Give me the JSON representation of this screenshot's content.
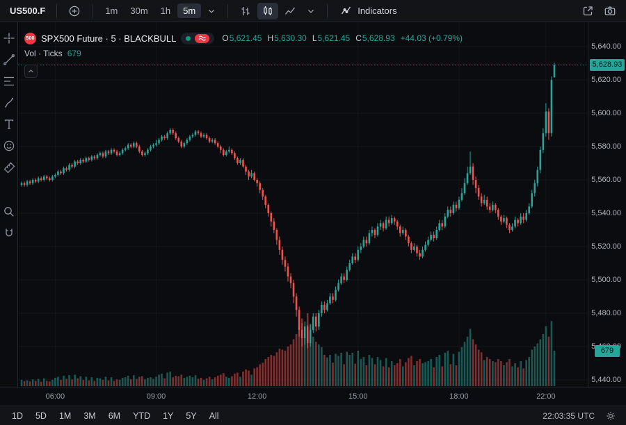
{
  "toolbar": {
    "symbol": "US500.F",
    "timeframes": [
      "1m",
      "30m",
      "1h",
      "5m"
    ],
    "active_timeframe": "5m",
    "indicators_label": "Indicators"
  },
  "legend": {
    "logo_text": "500",
    "title": "SPX500 Future · 5 · BLACKBULL",
    "ohlc": {
      "o_label": "O",
      "o": "5,621.45",
      "h_label": "H",
      "h": "5,630.30",
      "l_label": "L",
      "l": "5,621.45",
      "c_label": "C",
      "c": "5,628.93",
      "change": "+44.03 (+0.79%)"
    },
    "volume_row": {
      "label": "Vol · Ticks",
      "value": "679"
    }
  },
  "sidebar_tools": [
    {
      "name": "crosshair"
    },
    {
      "name": "trendline"
    },
    {
      "name": "fibonacci"
    },
    {
      "name": "brush"
    },
    {
      "name": "text"
    },
    {
      "name": "emoji"
    },
    {
      "name": "ruler"
    },
    {
      "name": "zoom",
      "gap_before": true
    },
    {
      "name": "magnet"
    }
  ],
  "price_scale": {
    "min": 5440,
    "max": 5640,
    "step": 20,
    "labels": [
      {
        "text": "5,640.00",
        "value": 5640
      },
      {
        "text": "5,620.00",
        "value": 5620
      },
      {
        "text": "5,600.00",
        "value": 5600
      },
      {
        "text": "5,580.00",
        "value": 5580
      },
      {
        "text": "5,560.00",
        "value": 5560
      },
      {
        "text": "5,540.00",
        "value": 5540
      },
      {
        "text": "5,520.00",
        "value": 5520
      },
      {
        "text": "5,500.00",
        "value": 5500
      },
      {
        "text": "5,480.00",
        "value": 5480
      },
      {
        "text": "5,460.00",
        "value": 5460
      },
      {
        "text": "5,440.00",
        "value": 5440
      }
    ],
    "last_price_label": "5,628.93",
    "volume_label": "679"
  },
  "bottom_bar": {
    "ranges": [
      "1D",
      "5D",
      "1M",
      "3M",
      "6M",
      "YTD",
      "1Y",
      "5Y",
      "All"
    ],
    "clock": "22:03:35 UTC"
  },
  "colors": {
    "up": "#26a69a",
    "down": "#ef5350",
    "brand_red": "#f23645",
    "market_open_green": "#089981",
    "badge_bg": "#26a69a"
  },
  "chart_data": {
    "type": "candlestick",
    "symbol": "SPX500 Future",
    "exchange": "BLACKBULL",
    "interval_minutes": 5,
    "price_range": [
      5440,
      5640
    ],
    "last": {
      "open": 5621.45,
      "high": 5630.3,
      "low": 5621.45,
      "close": 5628.93,
      "change": 44.03,
      "change_pct": 0.79,
      "tick_volume": 679
    },
    "time_labels": [
      {
        "text": "06:00",
        "index": 12
      },
      {
        "text": "09:00",
        "index": 48
      },
      {
        "text": "12:00",
        "index": 84
      },
      {
        "text": "15:00",
        "index": 120
      },
      {
        "text": "18:00",
        "index": 156
      },
      {
        "text": "22:00",
        "index": 187
      }
    ],
    "candle_fields": [
      "open",
      "high",
      "low",
      "close",
      "tick_volume"
    ],
    "candles": [
      [
        5557,
        5559,
        5556,
        5558,
        120
      ],
      [
        5558,
        5559,
        5556,
        5557,
        95
      ],
      [
        5557,
        5560,
        5556,
        5559,
        110
      ],
      [
        5559,
        5560,
        5557,
        5558,
        90
      ],
      [
        5558,
        5561,
        5557,
        5560,
        130
      ],
      [
        5560,
        5561,
        5558,
        5559,
        100
      ],
      [
        5559,
        5562,
        5558,
        5561,
        140
      ],
      [
        5561,
        5562,
        5559,
        5560,
        85
      ],
      [
        5560,
        5563,
        5559,
        5562,
        150
      ],
      [
        5562,
        5563,
        5560,
        5561,
        100
      ],
      [
        5561,
        5562,
        5559,
        5560,
        90
      ],
      [
        5560,
        5563,
        5559,
        5562,
        120
      ],
      [
        5562,
        5564,
        5561,
        5563,
        160
      ],
      [
        5563,
        5566,
        5562,
        5565,
        180
      ],
      [
        5565,
        5566,
        5563,
        5564,
        120
      ],
      [
        5564,
        5568,
        5563,
        5567,
        200
      ],
      [
        5567,
        5568,
        5565,
        5566,
        140
      ],
      [
        5566,
        5570,
        5565,
        5569,
        210
      ],
      [
        5569,
        5570,
        5567,
        5568,
        130
      ],
      [
        5568,
        5572,
        5567,
        5571,
        220
      ],
      [
        5571,
        5572,
        5569,
        5570,
        150
      ],
      [
        5570,
        5573,
        5569,
        5572,
        190
      ],
      [
        5572,
        5573,
        5570,
        5571,
        120
      ],
      [
        5571,
        5574,
        5570,
        5573,
        180
      ],
      [
        5573,
        5574,
        5571,
        5572,
        110
      ],
      [
        5572,
        5575,
        5571,
        5574,
        170
      ],
      [
        5574,
        5575,
        5572,
        5573,
        100
      ],
      [
        5573,
        5576,
        5572,
        5575,
        160
      ],
      [
        5575,
        5577,
        5574,
        5576,
        150
      ],
      [
        5576,
        5577,
        5573,
        5574,
        120
      ],
      [
        5574,
        5578,
        5573,
        5577,
        180
      ],
      [
        5577,
        5578,
        5575,
        5576,
        110
      ],
      [
        5576,
        5579,
        5575,
        5578,
        170
      ],
      [
        5578,
        5579,
        5576,
        5577,
        100
      ],
      [
        5577,
        5578,
        5574,
        5575,
        130
      ],
      [
        5575,
        5577,
        5574,
        5576,
        120
      ],
      [
        5576,
        5579,
        5575,
        5578,
        160
      ],
      [
        5578,
        5580,
        5577,
        5579,
        170
      ],
      [
        5579,
        5582,
        5578,
        5581,
        200
      ],
      [
        5581,
        5582,
        5579,
        5580,
        130
      ],
      [
        5580,
        5583,
        5579,
        5582,
        210
      ],
      [
        5582,
        5583,
        5579,
        5580,
        140
      ],
      [
        5580,
        5581,
        5576,
        5577,
        180
      ],
      [
        5577,
        5578,
        5574,
        5575,
        190
      ],
      [
        5575,
        5577,
        5574,
        5576,
        130
      ],
      [
        5576,
        5579,
        5575,
        5578,
        160
      ],
      [
        5578,
        5581,
        5577,
        5580,
        170
      ],
      [
        5580,
        5582,
        5579,
        5581,
        140
      ],
      [
        5581,
        5584,
        5580,
        5582,
        180
      ],
      [
        5582,
        5585,
        5581,
        5584,
        220
      ],
      [
        5584,
        5587,
        5583,
        5586,
        240
      ],
      [
        5586,
        5587,
        5584,
        5585,
        150
      ],
      [
        5585,
        5589,
        5584,
        5588,
        260
      ],
      [
        5588,
        5591,
        5587,
        5590,
        280
      ],
      [
        5590,
        5591,
        5587,
        5588,
        170
      ],
      [
        5588,
        5589,
        5584,
        5585,
        200
      ],
      [
        5585,
        5586,
        5582,
        5583,
        190
      ],
      [
        5583,
        5584,
        5579,
        5580,
        220
      ],
      [
        5580,
        5583,
        5579,
        5582,
        160
      ],
      [
        5582,
        5585,
        5581,
        5584,
        180
      ],
      [
        5584,
        5587,
        5583,
        5586,
        200
      ],
      [
        5586,
        5588,
        5585,
        5587,
        170
      ],
      [
        5587,
        5590,
        5586,
        5589,
        210
      ],
      [
        5589,
        5590,
        5587,
        5588,
        140
      ],
      [
        5588,
        5589,
        5585,
        5586,
        160
      ],
      [
        5586,
        5588,
        5585,
        5587,
        120
      ],
      [
        5587,
        5588,
        5584,
        5585,
        150
      ],
      [
        5585,
        5586,
        5582,
        5583,
        180
      ],
      [
        5583,
        5585,
        5582,
        5584,
        130
      ],
      [
        5584,
        5585,
        5581,
        5582,
        170
      ],
      [
        5582,
        5583,
        5579,
        5580,
        200
      ],
      [
        5580,
        5581,
        5576,
        5578,
        220
      ],
      [
        5578,
        5579,
        5574,
        5575,
        250
      ],
      [
        5575,
        5578,
        5574,
        5577,
        180
      ],
      [
        5577,
        5580,
        5576,
        5578,
        160
      ],
      [
        5578,
        5579,
        5575,
        5576,
        190
      ],
      [
        5576,
        5577,
        5572,
        5573,
        240
      ],
      [
        5573,
        5574,
        5569,
        5570,
        260
      ],
      [
        5570,
        5573,
        5569,
        5572,
        180
      ],
      [
        5572,
        5573,
        5567,
        5568,
        280
      ],
      [
        5568,
        5569,
        5563,
        5565,
        320
      ],
      [
        5565,
        5566,
        5560,
        5562,
        300
      ],
      [
        5562,
        5566,
        5561,
        5564,
        220
      ],
      [
        5564,
        5565,
        5559,
        5560,
        340
      ],
      [
        5560,
        5561,
        5556,
        5558,
        360
      ],
      [
        5558,
        5559,
        5552,
        5554,
        420
      ],
      [
        5554,
        5555,
        5548,
        5550,
        450
      ],
      [
        5550,
        5551,
        5543,
        5545,
        520
      ],
      [
        5545,
        5546,
        5538,
        5540,
        560
      ],
      [
        5540,
        5541,
        5532,
        5535,
        600
      ],
      [
        5535,
        5537,
        5528,
        5530,
        580
      ],
      [
        5530,
        5531,
        5521,
        5524,
        650
      ],
      [
        5524,
        5526,
        5515,
        5518,
        720
      ],
      [
        5518,
        5520,
        5509,
        5512,
        700
      ],
      [
        5512,
        5514,
        5505,
        5508,
        680
      ],
      [
        5508,
        5510,
        5499,
        5502,
        760
      ],
      [
        5502,
        5504,
        5495,
        5498,
        800
      ],
      [
        5498,
        5500,
        5486,
        5490,
        900
      ],
      [
        5490,
        5492,
        5478,
        5482,
        1000
      ],
      [
        5482,
        5484,
        5466,
        5470,
        1150
      ],
      [
        5470,
        5474,
        5460,
        5465,
        1300
      ],
      [
        5465,
        5475,
        5461,
        5472,
        1100
      ],
      [
        5472,
        5473,
        5459,
        5462,
        1400
      ],
      [
        5462,
        5473,
        5460,
        5470,
        1200
      ],
      [
        5470,
        5480,
        5468,
        5478,
        950
      ],
      [
        5478,
        5480,
        5469,
        5472,
        850
      ],
      [
        5472,
        5482,
        5470,
        5480,
        800
      ],
      [
        5480,
        5487,
        5478,
        5485,
        750
      ],
      [
        5485,
        5487,
        5480,
        5482,
        600
      ],
      [
        5482,
        5488,
        5481,
        5486,
        550
      ],
      [
        5486,
        5492,
        5485,
        5490,
        600
      ],
      [
        5490,
        5492,
        5486,
        5488,
        450
      ],
      [
        5488,
        5496,
        5487,
        5494,
        620
      ],
      [
        5494,
        5500,
        5493,
        5498,
        580
      ],
      [
        5498,
        5504,
        5497,
        5502,
        640
      ],
      [
        5502,
        5504,
        5498,
        5500,
        420
      ],
      [
        5500,
        5508,
        5499,
        5506,
        660
      ],
      [
        5506,
        5512,
        5505,
        5510,
        600
      ],
      [
        5510,
        5516,
        5509,
        5514,
        640
      ],
      [
        5514,
        5516,
        5510,
        5512,
        430
      ],
      [
        5512,
        5520,
        5511,
        5518,
        680
      ],
      [
        5518,
        5522,
        5516,
        5520,
        520
      ],
      [
        5520,
        5526,
        5519,
        5524,
        560
      ],
      [
        5524,
        5526,
        5520,
        5522,
        400
      ],
      [
        5522,
        5530,
        5521,
        5528,
        600
      ],
      [
        5528,
        5532,
        5526,
        5530,
        540
      ],
      [
        5530,
        5531,
        5525,
        5527,
        420
      ],
      [
        5527,
        5534,
        5526,
        5532,
        560
      ],
      [
        5532,
        5536,
        5530,
        5534,
        500
      ],
      [
        5534,
        5535,
        5529,
        5531,
        380
      ],
      [
        5531,
        5538,
        5530,
        5536,
        540
      ],
      [
        5536,
        5538,
        5532,
        5534,
        360
      ],
      [
        5534,
        5539,
        5533,
        5537,
        480
      ],
      [
        5537,
        5538,
        5533,
        5535,
        400
      ],
      [
        5535,
        5536,
        5530,
        5532,
        440
      ],
      [
        5532,
        5533,
        5526,
        5528,
        520
      ],
      [
        5528,
        5532,
        5527,
        5530,
        380
      ],
      [
        5530,
        5531,
        5524,
        5526,
        460
      ],
      [
        5526,
        5527,
        5520,
        5522,
        540
      ],
      [
        5522,
        5523,
        5516,
        5518,
        580
      ],
      [
        5518,
        5522,
        5517,
        5520,
        400
      ],
      [
        5520,
        5521,
        5514,
        5516,
        480
      ],
      [
        5516,
        5518,
        5512,
        5514,
        520
      ],
      [
        5514,
        5520,
        5513,
        5518,
        440
      ],
      [
        5518,
        5523,
        5517,
        5521,
        460
      ],
      [
        5521,
        5526,
        5520,
        5524,
        480
      ],
      [
        5524,
        5529,
        5523,
        5527,
        520
      ],
      [
        5527,
        5529,
        5523,
        5525,
        360
      ],
      [
        5525,
        5532,
        5524,
        5530,
        560
      ],
      [
        5530,
        5536,
        5529,
        5534,
        600
      ],
      [
        5534,
        5536,
        5530,
        5532,
        380
      ],
      [
        5532,
        5540,
        5531,
        5538,
        640
      ],
      [
        5538,
        5544,
        5537,
        5542,
        680
      ],
      [
        5542,
        5544,
        5538,
        5540,
        420
      ],
      [
        5540,
        5547,
        5539,
        5545,
        620
      ],
      [
        5545,
        5547,
        5541,
        5543,
        400
      ],
      [
        5543,
        5550,
        5542,
        5548,
        660
      ],
      [
        5548,
        5555,
        5547,
        5552,
        750
      ],
      [
        5552,
        5561,
        5551,
        5558,
        850
      ],
      [
        5558,
        5568,
        5557,
        5564,
        950
      ],
      [
        5564,
        5577,
        5563,
        5568,
        1100
      ],
      [
        5568,
        5570,
        5557,
        5560,
        900
      ],
      [
        5560,
        5562,
        5552,
        5555,
        800
      ],
      [
        5555,
        5557,
        5548,
        5550,
        700
      ],
      [
        5550,
        5552,
        5544,
        5546,
        650
      ],
      [
        5546,
        5551,
        5545,
        5548,
        500
      ],
      [
        5548,
        5550,
        5542,
        5544,
        560
      ],
      [
        5544,
        5546,
        5540,
        5542,
        520
      ],
      [
        5542,
        5547,
        5541,
        5545,
        480
      ],
      [
        5545,
        5546,
        5540,
        5542,
        460
      ],
      [
        5542,
        5543,
        5536,
        5538,
        520
      ],
      [
        5538,
        5539,
        5533,
        5535,
        480
      ],
      [
        5535,
        5539,
        5534,
        5537,
        400
      ],
      [
        5537,
        5538,
        5531,
        5533,
        460
      ],
      [
        5533,
        5534,
        5528,
        5530,
        520
      ],
      [
        5530,
        5534,
        5529,
        5532,
        380
      ],
      [
        5532,
        5538,
        5531,
        5536,
        440
      ],
      [
        5536,
        5537,
        5532,
        5534,
        360
      ],
      [
        5534,
        5540,
        5533,
        5538,
        480
      ],
      [
        5538,
        5540,
        5534,
        5536,
        340
      ],
      [
        5536,
        5542,
        5535,
        5540,
        500
      ],
      [
        5540,
        5546,
        5539,
        5544,
        560
      ],
      [
        5544,
        5554,
        5543,
        5552,
        700
      ],
      [
        5552,
        5560,
        5550,
        5558,
        760
      ],
      [
        5558,
        5568,
        5556,
        5566,
        820
      ],
      [
        5566,
        5580,
        5564,
        5578,
        900
      ],
      [
        5578,
        5591,
        5576,
        5588,
        1000
      ],
      [
        5588,
        5606,
        5586,
        5601,
        1150
      ],
      [
        5601,
        5603,
        5584,
        5588,
        950
      ],
      [
        5588,
        5622,
        5586,
        5620,
        1250
      ],
      [
        5621.45,
        5630.3,
        5621.45,
        5628.93,
        679
      ]
    ]
  }
}
